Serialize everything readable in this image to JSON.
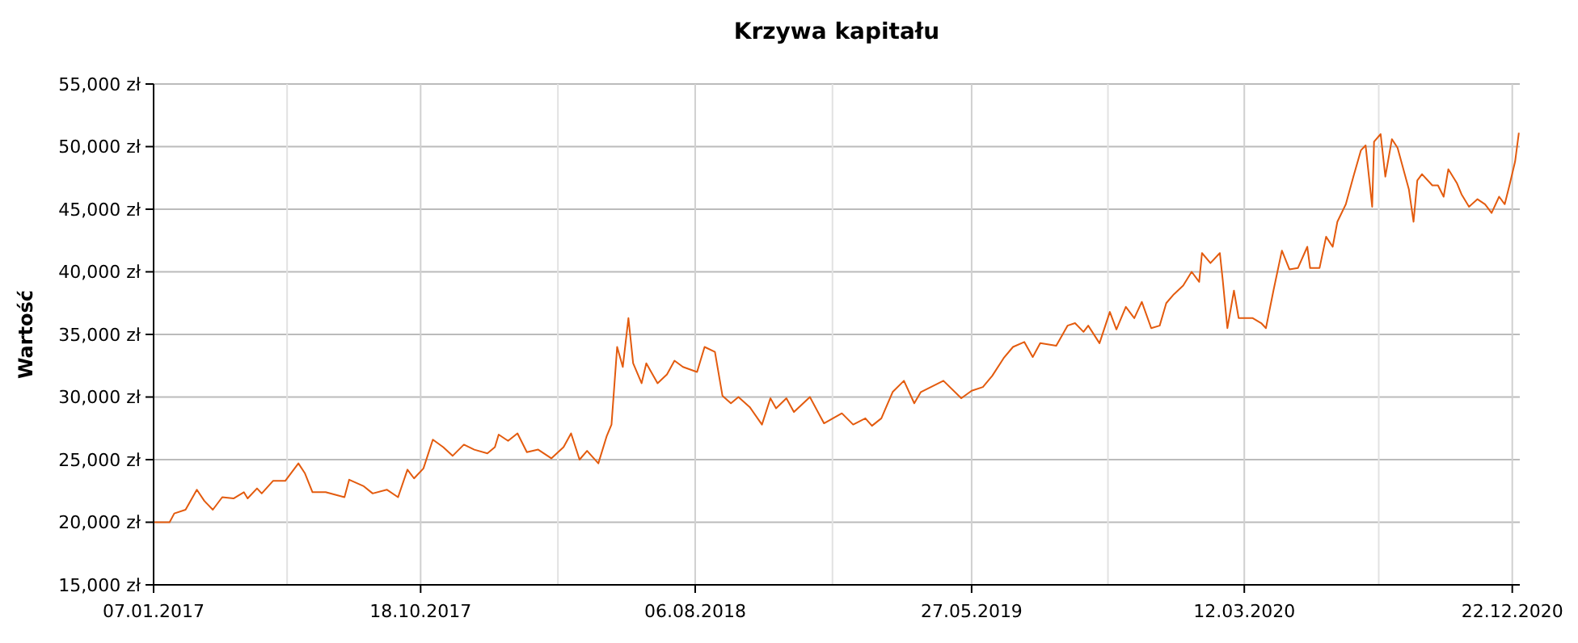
{
  "chart_data": {
    "type": "line",
    "title": "Krzywa kapitału",
    "ylabel": "Wartość",
    "xlim": [
      "2017-01-07",
      "2020-12-30"
    ],
    "xticks": [
      {
        "value": "2017-01-07",
        "label": "07.01.2017"
      },
      {
        "value": "2017-05-29",
        "label": null
      },
      {
        "value": "2017-10-18",
        "label": "18.10.2017"
      },
      {
        "value": "2018-03-13",
        "label": null
      },
      {
        "value": "2018-08-06",
        "label": "06.08.2018"
      },
      {
        "value": "2018-12-30",
        "label": null
      },
      {
        "value": "2019-05-27",
        "label": "27.05.2019"
      },
      {
        "value": "2019-10-19",
        "label": null
      },
      {
        "value": "2020-03-12",
        "label": "12.03.2020"
      },
      {
        "value": "2020-08-02",
        "label": null
      },
      {
        "value": "2020-12-22",
        "label": "22.12.2020"
      }
    ],
    "ylim": [
      15000,
      55000
    ],
    "yticks": [
      {
        "value": 15000,
        "label": "15,000 zł"
      },
      {
        "value": 20000,
        "label": "20,000 zł"
      },
      {
        "value": 25000,
        "label": "25,000 zł"
      },
      {
        "value": 30000,
        "label": "30,000 zł"
      },
      {
        "value": 35000,
        "label": "35,000 zł"
      },
      {
        "value": 40000,
        "label": "40,000 zł"
      },
      {
        "value": 45000,
        "label": "45,000 zł"
      },
      {
        "value": 50000,
        "label": "50,000 zł"
      },
      {
        "value": 55000,
        "label": "55,000 zł"
      }
    ],
    "grid": true,
    "series": [
      {
        "color": "#e35b0e",
        "x": [
          "2017-01-07",
          "2017-01-24",
          "2017-01-29",
          "2017-02-10",
          "2017-02-22",
          "2017-03-02",
          "2017-03-11",
          "2017-03-21",
          "2017-04-02",
          "2017-04-13",
          "2017-04-17",
          "2017-04-27",
          "2017-05-02",
          "2017-05-14",
          "2017-05-27",
          "2017-06-10",
          "2017-06-17",
          "2017-06-25",
          "2017-07-09",
          "2017-07-29",
          "2017-08-03",
          "2017-08-18",
          "2017-08-28",
          "2017-09-12",
          "2017-09-24",
          "2017-10-04",
          "2017-10-11",
          "2017-10-21",
          "2017-10-31",
          "2017-11-11",
          "2017-11-21",
          "2017-12-03",
          "2017-12-14",
          "2017-12-28",
          "2018-01-05",
          "2018-01-09",
          "2018-01-19",
          "2018-01-29",
          "2018-02-08",
          "2018-02-20",
          "2018-03-06",
          "2018-03-19",
          "2018-03-27",
          "2018-04-05",
          "2018-04-13",
          "2018-04-25",
          "2018-05-04",
          "2018-05-09",
          "2018-05-15",
          "2018-05-21",
          "2018-05-27",
          "2018-06-01",
          "2018-06-10",
          "2018-06-15",
          "2018-06-27",
          "2018-07-07",
          "2018-07-15",
          "2018-07-24",
          "2018-08-08",
          "2018-08-16",
          "2018-08-27",
          "2018-09-04",
          "2018-09-13",
          "2018-09-21",
          "2018-10-03",
          "2018-10-16",
          "2018-10-25",
          "2018-10-31",
          "2018-11-11",
          "2018-11-19",
          "2018-12-06",
          "2018-12-21",
          "2019-01-09",
          "2019-01-21",
          "2019-02-03",
          "2019-02-10",
          "2019-02-20",
          "2019-03-04",
          "2019-03-16",
          "2019-03-27",
          "2019-04-03",
          "2019-04-27",
          "2019-05-16",
          "2019-05-27",
          "2019-06-08",
          "2019-06-18",
          "2019-06-30",
          "2019-07-10",
          "2019-07-22",
          "2019-07-31",
          "2019-08-08",
          "2019-08-25",
          "2019-09-06",
          "2019-09-14",
          "2019-09-23",
          "2019-09-28",
          "2019-10-10",
          "2019-10-21",
          "2019-10-28",
          "2019-11-07",
          "2019-11-16",
          "2019-11-24",
          "2019-12-04",
          "2019-12-13",
          "2019-12-20",
          "2019-12-28",
          "2020-01-07",
          "2020-01-16",
          "2020-01-24",
          "2020-01-27",
          "2020-02-05",
          "2020-02-15",
          "2020-02-18",
          "2020-02-23",
          "2020-03-01",
          "2020-03-06",
          "2020-03-21",
          "2020-03-30",
          "2020-04-04",
          "2020-04-12",
          "2020-04-21",
          "2020-04-29",
          "2020-05-08",
          "2020-05-18",
          "2020-05-21",
          "2020-05-31",
          "2020-06-07",
          "2020-06-14",
          "2020-06-19",
          "2020-06-28",
          "2020-07-06",
          "2020-07-14",
          "2020-07-19",
          "2020-07-26",
          "2020-07-28",
          "2020-08-04",
          "2020-08-09",
          "2020-08-16",
          "2020-08-22",
          "2020-09-03",
          "2020-09-08",
          "2020-09-12",
          "2020-09-17",
          "2020-09-28",
          "2020-10-04",
          "2020-10-10",
          "2020-10-15",
          "2020-10-24",
          "2020-10-29",
          "2020-11-06",
          "2020-11-15",
          "2020-11-23",
          "2020-11-30",
          "2020-12-08",
          "2020-12-14",
          "2020-12-19",
          "2020-12-25",
          "2020-12-29"
        ],
        "values": [
          20000,
          20000,
          20700,
          21000,
          22600,
          21700,
          21000,
          22000,
          21900,
          22400,
          21900,
          22700,
          22300,
          23300,
          23300,
          24700,
          23900,
          22400,
          22400,
          22000,
          23400,
          22900,
          22300,
          22600,
          22000,
          24200,
          23500,
          24300,
          26600,
          26000,
          25300,
          26200,
          25800,
          25500,
          26000,
          27000,
          26500,
          27100,
          25600,
          25800,
          25100,
          26000,
          27100,
          25000,
          25700,
          24700,
          26900,
          27800,
          34000,
          32400,
          36300,
          32700,
          31100,
          32700,
          31100,
          31800,
          32900,
          32400,
          32000,
          34000,
          33600,
          30100,
          29500,
          30000,
          29200,
          27800,
          29900,
          29100,
          29900,
          28800,
          30000,
          27900,
          28700,
          27800,
          28300,
          27700,
          28300,
          30400,
          31300,
          29500,
          30400,
          31300,
          29900,
          30500,
          30800,
          31700,
          33100,
          34000,
          34400,
          33200,
          34300,
          34100,
          35700,
          35900,
          35200,
          35700,
          34300,
          36800,
          35400,
          37200,
          36300,
          37600,
          35500,
          35700,
          37500,
          38200,
          38900,
          40000,
          39200,
          41500,
          40700,
          41500,
          39400,
          35500,
          38500,
          36300,
          36300,
          35900,
          35500,
          38500,
          41700,
          40200,
          40300,
          42000,
          40300,
          40300,
          42800,
          42000,
          44000,
          45400,
          47600,
          49700,
          50100,
          45200,
          50400,
          51000,
          47600,
          50600,
          49900,
          46600,
          44000,
          47300,
          47800,
          46900,
          46900,
          46000,
          48200,
          47100,
          46200,
          45200,
          45800,
          45400,
          44700,
          46000,
          45400,
          46900,
          48800,
          51100
        ]
      }
    ]
  }
}
